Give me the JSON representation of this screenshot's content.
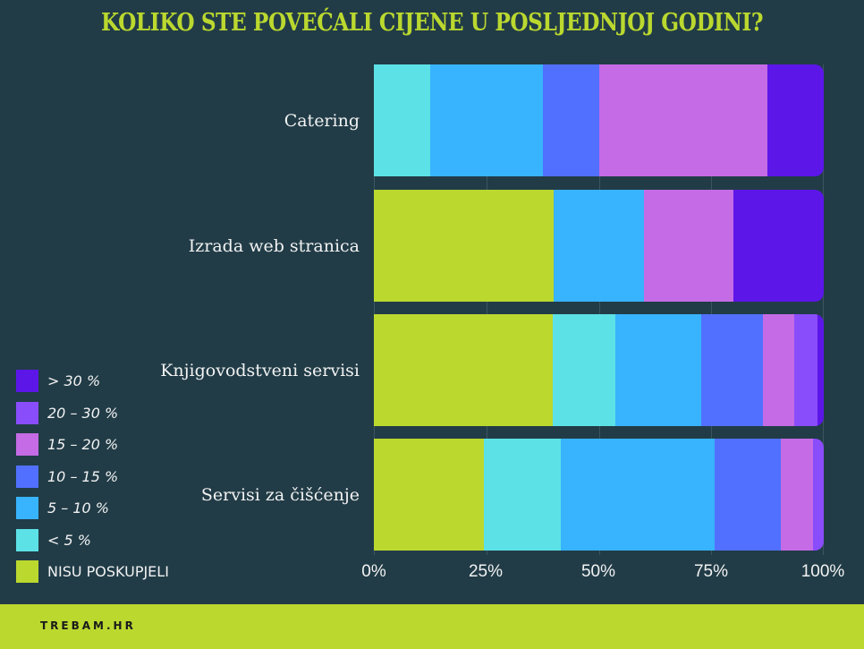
{
  "title": "KOLIKO STE POVEĆALI CIJENE U POSLJEDNJOJ GODINI?",
  "footer": {
    "brand": "TREBAM.HR"
  },
  "colors": {
    "background": "#213c47",
    "accent": "#bbd82f",
    "> 30 %": "#5c16e8",
    "20 – 30 %": "#8a4dfb",
    "15 – 20 %": "#c56be5",
    "10 – 15 %": "#5170ff",
    "5 – 10 %": "#38b3fd",
    "< 5 %": "#5ce1e6",
    "NISU POSKUPJELI": "#bbd82f"
  },
  "legend": [
    {
      "label": "> 30 %",
      "color": "#5c16e8"
    },
    {
      "label": "20 – 30 %",
      "color": "#8a4dfb"
    },
    {
      "label": "15 – 20 %",
      "color": "#c56be5"
    },
    {
      "label": "10 – 15 %",
      "color": "#5170ff"
    },
    {
      "label": "5 – 10 %",
      "color": "#38b3fd"
    },
    {
      "label": "< 5 %",
      "color": "#5ce1e6"
    },
    {
      "label": "NISU POSKUPJELI",
      "color": "#bbd82f"
    }
  ],
  "axis": {
    "ticks": [
      "0%",
      "25%",
      "50%",
      "75%",
      "100%"
    ]
  },
  "chart_data": {
    "type": "bar",
    "orientation": "horizontal",
    "stacked": true,
    "normalized": true,
    "title": "KOLIKO STE POVEĆALI CIJENE U POSLJEDNJOJ GODINI?",
    "xlabel": "",
    "ylabel": "",
    "xlim": [
      0,
      100
    ],
    "x_ticks": [
      "0%",
      "25%",
      "50%",
      "75%",
      "100%"
    ],
    "grid": true,
    "legend_position": "left",
    "categories": [
      "Catering",
      "Izrada web stranica",
      "Knjigovodstveni servisi",
      "Servisi za čišćenje"
    ],
    "series": [
      {
        "name": "NISU POSKUPJELI",
        "color": "#bbd82f",
        "values": [
          0,
          40,
          39.7,
          24.5
        ]
      },
      {
        "name": "< 5 %",
        "color": "#5ce1e6",
        "values": [
          12.5,
          0,
          14,
          17
        ]
      },
      {
        "name": "5 – 10 %",
        "color": "#38b3fd",
        "values": [
          25,
          20,
          19,
          34.2
        ]
      },
      {
        "name": "10 – 15 %",
        "color": "#5170ff",
        "values": [
          12.5,
          0,
          13.8,
          14.7
        ]
      },
      {
        "name": "15 – 20 %",
        "color": "#c56be5",
        "values": [
          37.5,
          20,
          7,
          7.3
        ]
      },
      {
        "name": "20 – 30 %",
        "color": "#8a4dfb",
        "values": [
          0,
          0,
          5.1,
          2.3
        ]
      },
      {
        "name": "> 30 %",
        "color": "#5c16e8",
        "values": [
          12.5,
          20,
          1.4,
          0
        ]
      }
    ]
  }
}
